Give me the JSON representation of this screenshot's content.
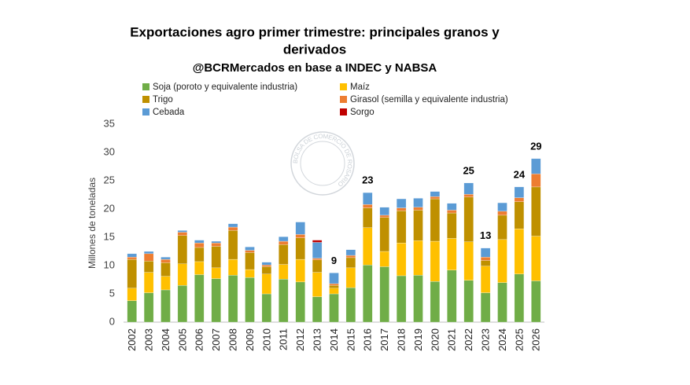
{
  "chart_data": {
    "type": "stacked_bar",
    "title": [
      "Exportaciones agro primer trimestre: principales granos y",
      "derivados"
    ],
    "subtitle": "@BCRMercados en base a INDEC y NABSA",
    "y_label": "Millones de toneladas",
    "watermark": "BOLSA DE COMERCIO DE ROSARIO",
    "categories": [
      "2002",
      "2003",
      "2004",
      "2005",
      "2006",
      "2007",
      "2008",
      "2009",
      "2010",
      "2011",
      "2012",
      "2013",
      "2014",
      "2015",
      "2016",
      "2017",
      "2018",
      "2019",
      "2020",
      "2021",
      "2022",
      "2023",
      "2024",
      "2025",
      "2026"
    ],
    "series": [
      {
        "name": "Soja (poroto y equivalente industria)",
        "color": "#70ad47",
        "values": [
          3.8,
          5.2,
          5.7,
          6.5,
          8.4,
          7.7,
          8.3,
          7.9,
          5.0,
          7.6,
          7.1,
          4.5,
          5.0,
          6.1,
          10.1,
          9.8,
          8.2,
          8.3,
          7.2,
          9.2,
          7.4,
          5.2,
          7.0,
          8.5,
          7.3
        ]
      },
      {
        "name": "Maíz",
        "color": "#ffc000",
        "values": [
          2.2,
          3.6,
          2.4,
          3.8,
          2.3,
          1.9,
          2.8,
          1.4,
          3.5,
          2.6,
          4.0,
          4.3,
          1.0,
          3.5,
          6.6,
          2.7,
          5.8,
          6.1,
          7.1,
          5.6,
          6.8,
          4.7,
          7.6,
          8.0,
          7.9
        ]
      },
      {
        "name": "Trigo",
        "color": "#bf9000",
        "values": [
          5.1,
          2.0,
          2.4,
          5.0,
          2.5,
          3.8,
          5.1,
          3.0,
          1.3,
          3.5,
          3.8,
          2.2,
          0.5,
          1.8,
          3.5,
          6.0,
          5.7,
          5.4,
          7.5,
          4.5,
          7.9,
          1.0,
          4.3,
          4.8,
          8.7
        ]
      },
      {
        "name": "Girasol (semilla y equivalente industria)",
        "color": "#ed7d31",
        "values": [
          0.4,
          1.3,
          0.6,
          0.6,
          0.8,
          0.6,
          0.6,
          0.4,
          0.3,
          0.6,
          0.6,
          0.3,
          0.3,
          0.4,
          0.6,
          0.4,
          0.5,
          0.5,
          0.4,
          0.5,
          0.5,
          0.6,
          0.7,
          0.7,
          2.3
        ]
      },
      {
        "name": "Cebada",
        "color": "#5b9bd5",
        "values": [
          0.6,
          0.4,
          0.4,
          0.3,
          0.5,
          0.3,
          0.6,
          0.6,
          0.5,
          0.8,
          2.2,
          2.8,
          1.9,
          1.0,
          2.1,
          1.4,
          1.6,
          1.6,
          0.9,
          1.2,
          2.0,
          1.6,
          1.5,
          1.9,
          2.7
        ]
      },
      {
        "name": "Sorgo",
        "color": "#c00000",
        "values": [
          0,
          0,
          0,
          0,
          0,
          0,
          0,
          0,
          0,
          0,
          0,
          0.4,
          0,
          0,
          0,
          0,
          0,
          0,
          0,
          0,
          0,
          0,
          0,
          0,
          0
        ]
      }
    ],
    "total_labels": [
      null,
      null,
      null,
      null,
      null,
      null,
      null,
      null,
      null,
      null,
      null,
      null,
      9,
      null,
      23,
      null,
      null,
      null,
      null,
      null,
      25,
      13,
      null,
      24,
      29
    ],
    "ylim": [
      0,
      35
    ],
    "yticks": [
      0,
      5,
      10,
      15,
      20,
      25,
      30,
      35
    ],
    "grid": false
  }
}
